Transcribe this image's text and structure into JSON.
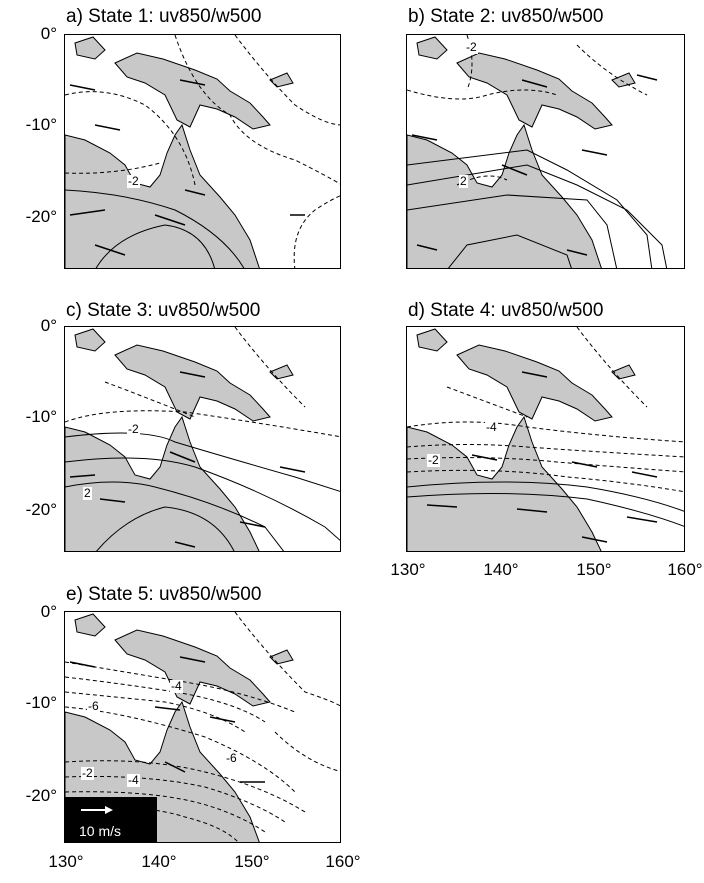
{
  "panels": [
    {
      "title": "a) State 1: uv850/w500",
      "contour_labels": [
        "-2"
      ]
    },
    {
      "title": "b) State 2: uv850/w500",
      "contour_labels": [
        "-2",
        "2"
      ]
    },
    {
      "title": "c) State 3: uv850/w500",
      "contour_labels": [
        "-2",
        "2"
      ]
    },
    {
      "title": "d) State 4: uv850/w500",
      "contour_labels": [
        "-4",
        "-2"
      ]
    },
    {
      "title": "e) State 5: uv850/w500",
      "contour_labels": [
        "-4",
        "-6",
        "-6",
        "-2",
        "-4"
      ]
    }
  ],
  "y_ticks": [
    "0°",
    "-10°",
    "-20°"
  ],
  "x_ticks": [
    "130°",
    "140°",
    "150°",
    "160°"
  ],
  "scale": {
    "label": "10 m/s"
  },
  "colors": {
    "land": "#c8c8c8",
    "line": "#000000"
  }
}
